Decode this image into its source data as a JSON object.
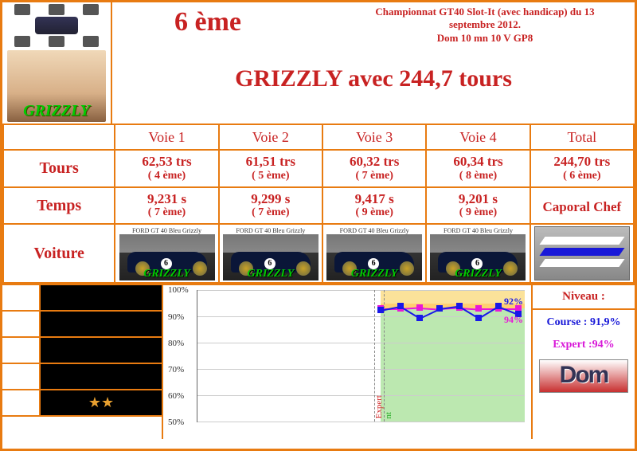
{
  "header": {
    "position": "6 ème",
    "champ_line1": "Championnat GT40 Slot-It (avec handicap) du 13",
    "champ_line2": "septembre 2012.",
    "champ_line3": "Dom 10 mn 10 V GP8",
    "title": "GRIZZLY avec 244,7 tours",
    "avatar_name": "GRIZZLY"
  },
  "cols": {
    "lane1": "Voie 1",
    "lane2": "Voie 2",
    "lane3": "Voie 3",
    "lane4": "Voie 4",
    "total": "Total"
  },
  "rows": {
    "tours": "Tours",
    "temps": "Temps",
    "voiture": "Voiture"
  },
  "tours": {
    "v1": "62,53 trs",
    "r1": "( 4 ème)",
    "v2": "61,51 trs",
    "r2": "( 5 ème)",
    "v3": "60,32 trs",
    "r3": "( 7 ème)",
    "v4": "60,34 trs",
    "r4": "( 8 ème)",
    "tot": "244,70 trs",
    "rtot": "( 6 ème)"
  },
  "temps": {
    "v1": "9,231 s",
    "r1": "( 7 ème)",
    "v2": "9,299 s",
    "r2": "( 7 ème)",
    "v3": "9,417 s",
    "r3": "( 9 ème)",
    "v4": "9,201 s",
    "r4": "( 9 ème)",
    "rank_title": "Caporal Chef"
  },
  "voiture": {
    "caption": "FORD GT 40 Bleu Grizzly",
    "carnum": "6",
    "tag": "GRIZZLY"
  },
  "stars": {
    "r5": "★★"
  },
  "chart": {
    "y_labels": [
      "100%",
      "90%",
      "80%",
      "70%",
      "60%",
      "50%"
    ],
    "y_positions_pct": [
      0,
      20,
      40,
      60,
      80,
      100
    ],
    "vlabels": [
      {
        "text": "Expert",
        "left_pct": 54,
        "color": "#d02020"
      },
      {
        "text": "nt",
        "left_pct": 57,
        "color": "#2a2"
      }
    ],
    "end_labels": {
      "blue": "92%",
      "magenta": "94%"
    },
    "magenta": {
      "color": "#e818d8",
      "pts": [
        [
          56,
          14
        ],
        [
          62,
          14
        ],
        [
          68,
          13
        ],
        [
          74,
          14
        ],
        [
          80,
          13
        ],
        [
          86,
          14
        ],
        [
          92,
          14
        ],
        [
          98,
          14
        ]
      ]
    },
    "blue": {
      "color": "#1818e8",
      "pts": [
        [
          56,
          15
        ],
        [
          62,
          12
        ],
        [
          68,
          21
        ],
        [
          74,
          14
        ],
        [
          80,
          12
        ],
        [
          86,
          21
        ],
        [
          92,
          12
        ],
        [
          98,
          18
        ]
      ]
    }
  },
  "info": {
    "niveau": "Niveau :",
    "course": "Course : 91,9%",
    "expert": "Expert :94%",
    "dom": "Dom"
  }
}
